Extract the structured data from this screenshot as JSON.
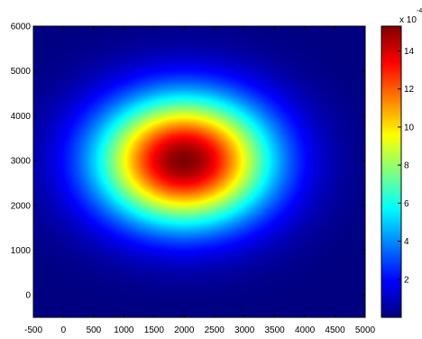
{
  "chart_data": {
    "type": "heatmap",
    "title": "",
    "xlabel": "",
    "ylabel": "",
    "xlim": [
      -500,
      5000
    ],
    "ylim": [
      -500,
      6000
    ],
    "x_ticks": [
      -500,
      0,
      500,
      1000,
      1500,
      2000,
      2500,
      3000,
      3500,
      4000,
      4500,
      5000
    ],
    "y_ticks": [
      0,
      1000,
      2000,
      3000,
      4000,
      5000,
      6000
    ],
    "field": {
      "form": "gaussian",
      "center": [
        2000,
        3000
      ],
      "peak": 15.3,
      "sigma_x": 1000,
      "sigma_y": 1000,
      "base": 0
    },
    "colorbar": {
      "colormap": "jet",
      "range": [
        0,
        15.3
      ],
      "ticks": [
        2,
        4,
        6,
        8,
        10,
        12,
        14
      ],
      "multiplier_label": "x 10",
      "exponent_label": "-4"
    }
  }
}
